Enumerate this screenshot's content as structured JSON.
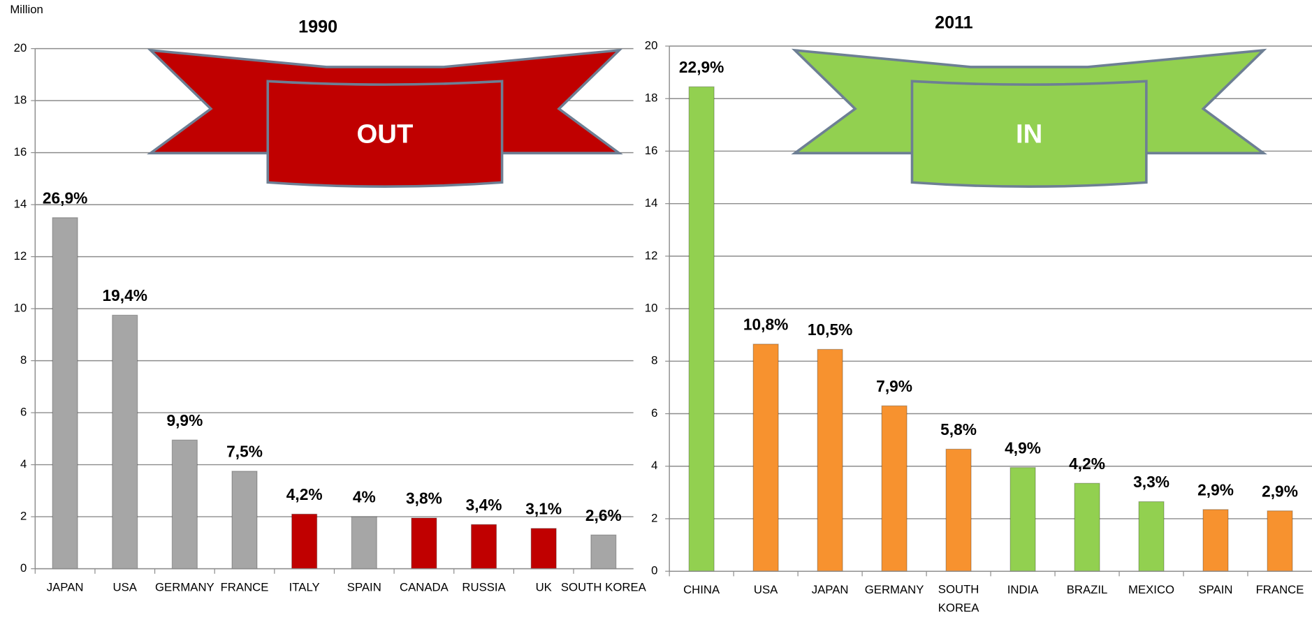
{
  "chart_data": [
    {
      "type": "bar",
      "title": "1990",
      "y_label": "Million",
      "annotation": "OUT",
      "categories": [
        "JAPAN",
        "USA",
        "GERMANY",
        "FRANCE",
        "ITALY",
        "SPAIN",
        "CANADA",
        "RUSSIA",
        "UK",
        "SOUTH KOREA"
      ],
      "values": [
        13.5,
        9.75,
        4.95,
        3.75,
        2.1,
        2.0,
        1.95,
        1.7,
        1.55,
        1.3
      ],
      "share_labels": [
        "26,9%",
        "19,4%",
        "9,9%",
        "7,5%",
        "4,2%",
        "4%",
        "3,8%",
        "3,4%",
        "3,1%",
        "2,6%"
      ],
      "colors": [
        "#a6a6a6",
        "#a6a6a6",
        "#a6a6a6",
        "#a6a6a6",
        "#c00000",
        "#a6a6a6",
        "#c00000",
        "#c00000",
        "#c00000",
        "#a6a6a6"
      ],
      "banner_color": "#c00000",
      "ylim": [
        0,
        20
      ],
      "yticks": [
        0,
        2,
        4,
        6,
        8,
        10,
        12,
        14,
        16,
        18,
        20
      ],
      "grid": true,
      "wrap_labels": false
    },
    {
      "type": "bar",
      "title": "2011",
      "annotation": "IN",
      "categories": [
        "CHINA",
        "USA",
        "JAPAN",
        "GERMANY",
        "SOUTH KOREA",
        "INDIA",
        "BRAZIL",
        "MEXICO",
        "SPAIN",
        "FRANCE"
      ],
      "values": [
        18.45,
        8.65,
        8.45,
        6.3,
        4.65,
        3.95,
        3.35,
        2.65,
        2.35,
        2.3
      ],
      "share_labels": [
        "22,9%",
        "10,8%",
        "10,5%",
        "7,9%",
        "5,8%",
        "4,9%",
        "4,2%",
        "3,3%",
        "2,9%",
        "2,9%"
      ],
      "colors": [
        "#92d050",
        "#f7922f",
        "#f7922f",
        "#f7922f",
        "#f7922f",
        "#92d050",
        "#92d050",
        "#92d050",
        "#f7922f",
        "#f7922f"
      ],
      "banner_color": "#92d050",
      "ylim": [
        0,
        20
      ],
      "yticks": [
        0,
        2,
        4,
        6,
        8,
        10,
        12,
        14,
        16,
        18,
        20
      ],
      "grid": true,
      "wrap_labels": true
    }
  ]
}
